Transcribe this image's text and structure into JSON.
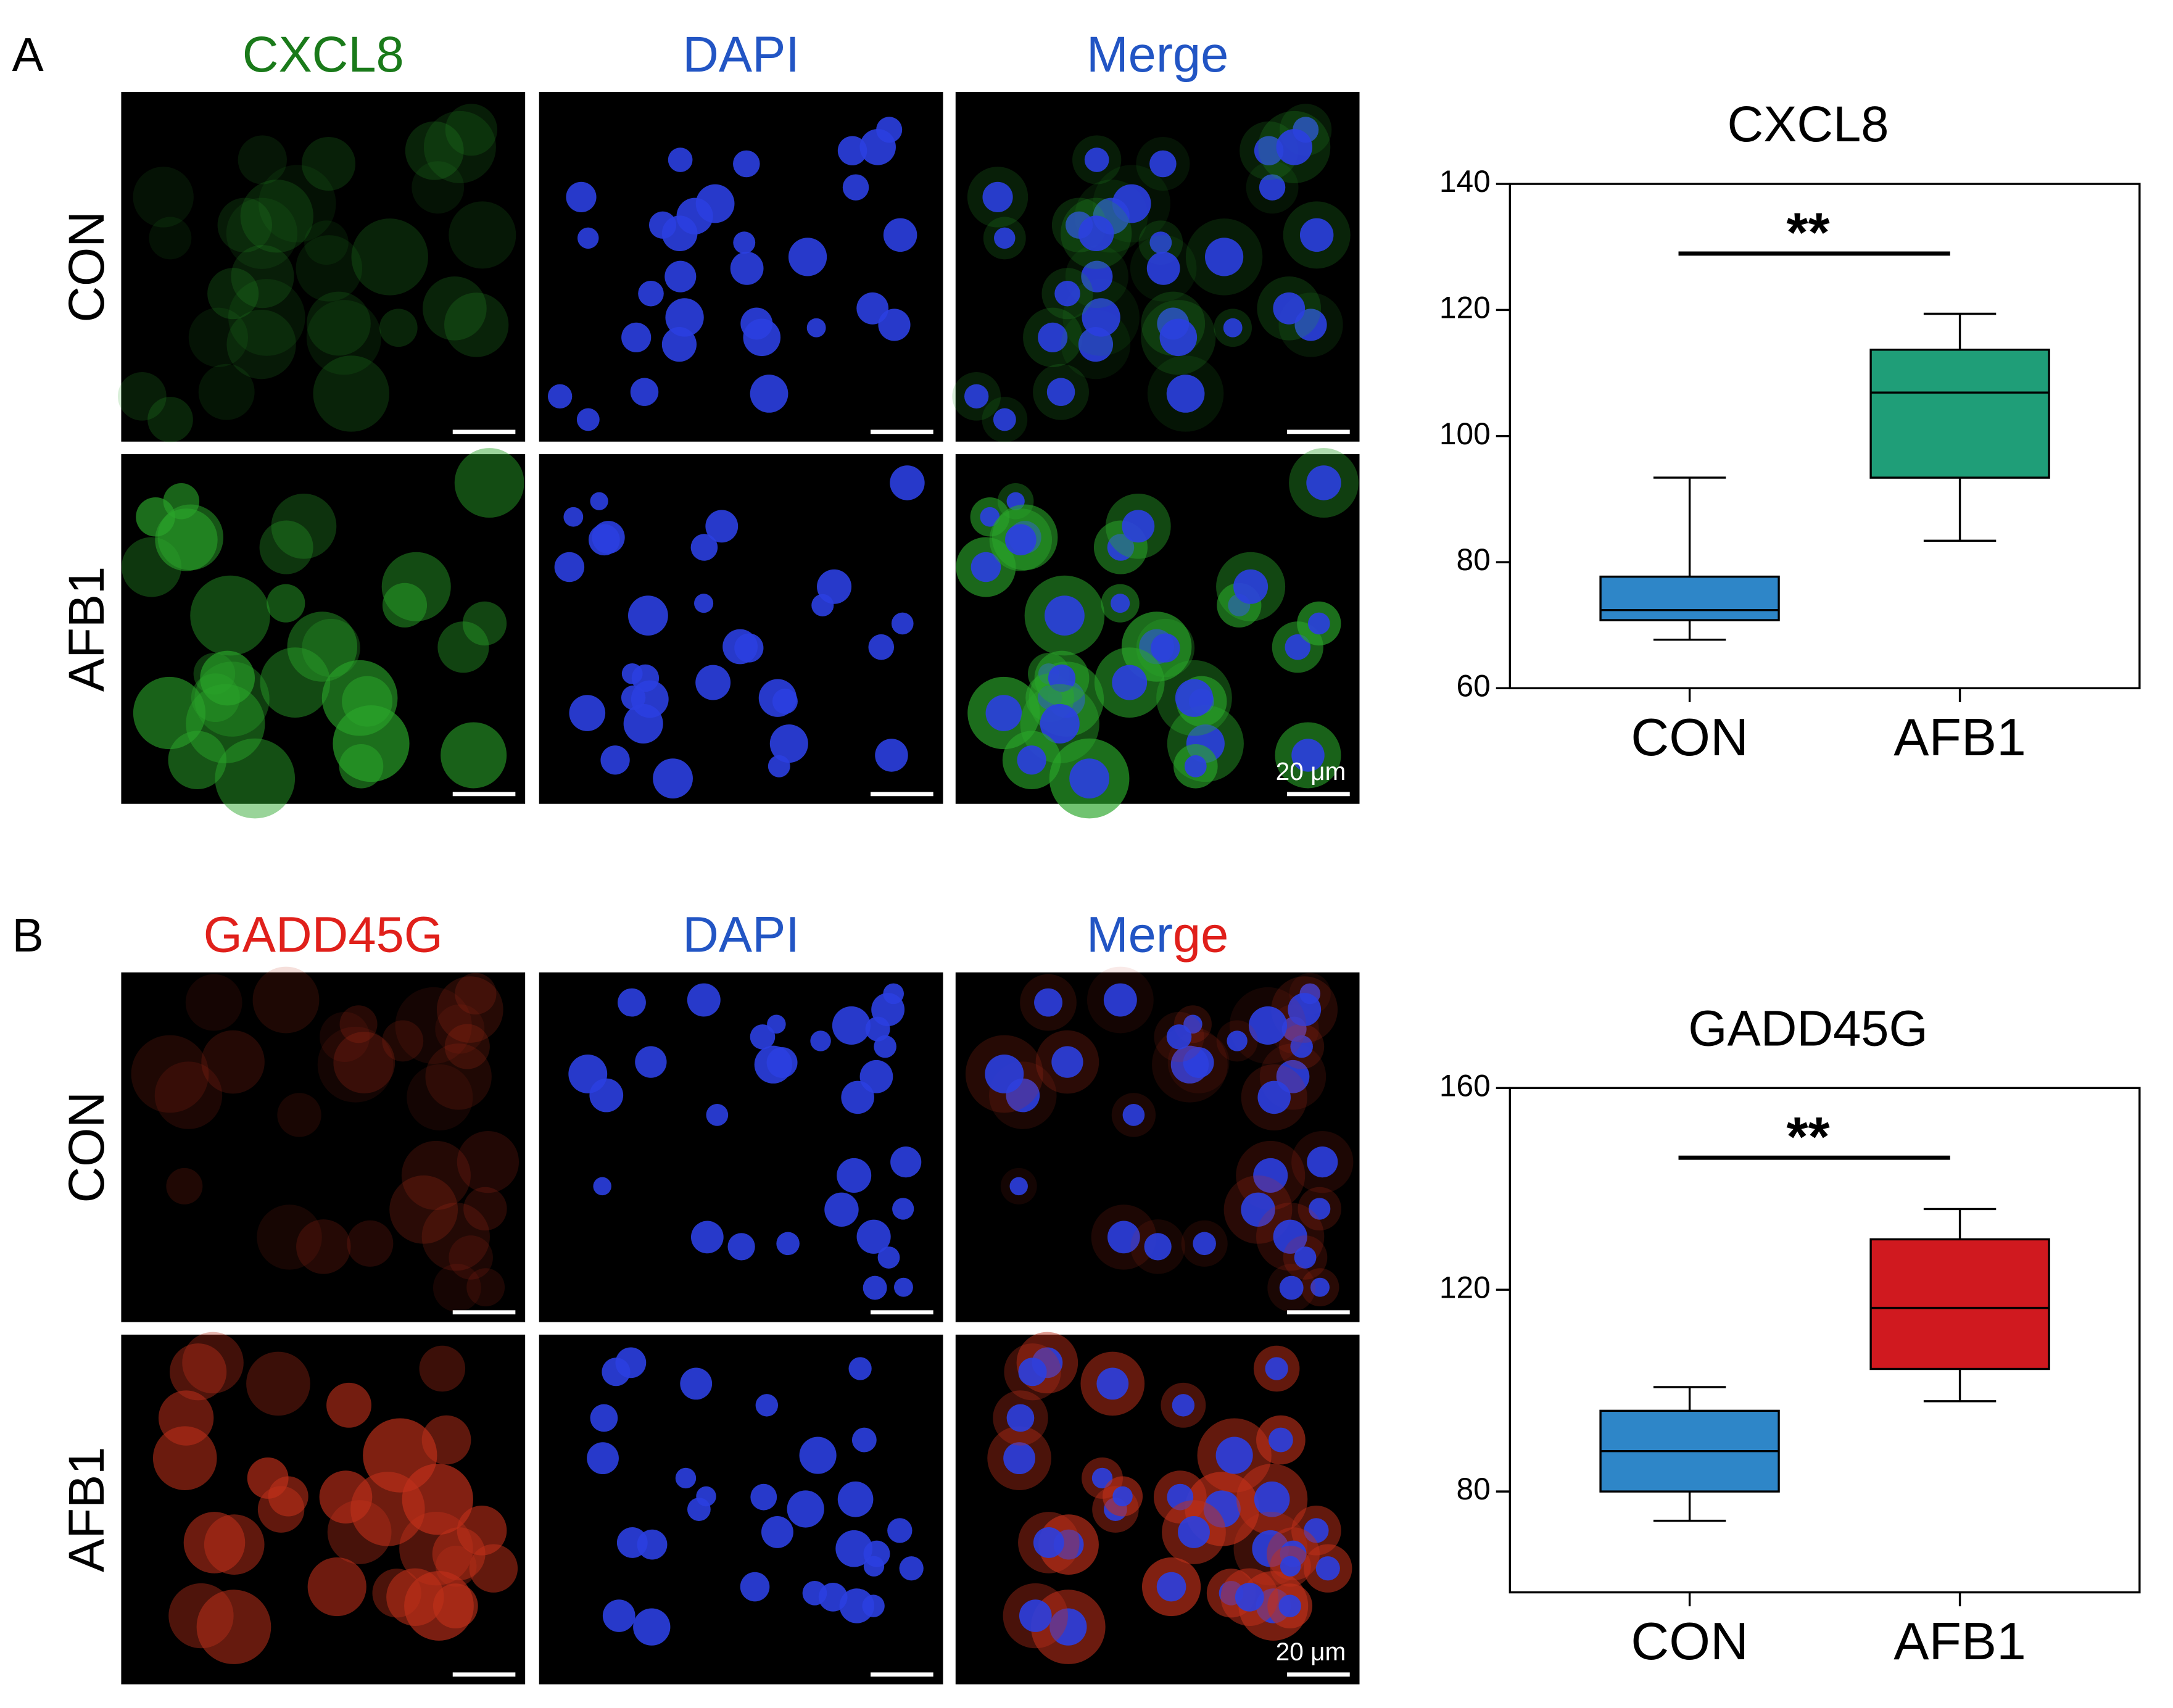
{
  "panels": [
    {
      "label": "A",
      "columns": [
        {
          "parts": [
            {
              "text": "CXCL8",
              "color": "#1a7a1a"
            }
          ]
        },
        {
          "parts": [
            {
              "text": "DAPI",
              "color": "#2255c4"
            }
          ]
        },
        {
          "parts": [
            {
              "text": "Merge",
              "color": "#2255c4"
            }
          ]
        }
      ],
      "rows": [
        "CON",
        "AFB1"
      ],
      "scale_bar": "20 μm"
    },
    {
      "label": "B",
      "columns": [
        {
          "parts": [
            {
              "text": "GADD45G",
              "color": "#e0201b"
            }
          ]
        },
        {
          "parts": [
            {
              "text": "DAPI",
              "color": "#2255c4"
            }
          ]
        },
        {
          "parts": [
            {
              "text": "Mer",
              "color": "#2255c4"
            },
            {
              "text": "ge",
              "color": "#e0201b"
            }
          ]
        }
      ],
      "rows": [
        "CON",
        "AFB1"
      ],
      "scale_bar": "20 μm"
    }
  ],
  "chart_data": [
    {
      "type": "box",
      "title": "CXCL8",
      "categories": [
        "CON",
        "AFB1"
      ],
      "boxes": [
        {
          "min": 67.7,
          "q1": 70.8,
          "median": 72.4,
          "q3": 77.7,
          "max": 93.4
        },
        {
          "min": 83.4,
          "q1": 93.4,
          "median": 106.9,
          "q3": 113.7,
          "max": 119.4
        }
      ],
      "colors": [
        "#2e86c8",
        "#1f9e78"
      ],
      "ylim": [
        60,
        140
      ],
      "yticks": [
        60,
        80,
        100,
        120,
        140
      ],
      "annotation": "**"
    },
    {
      "type": "box",
      "title": "GADD45G",
      "categories": [
        "CON",
        "AFB1"
      ],
      "boxes": [
        {
          "min": 74.2,
          "q1": 80,
          "median": 88,
          "q3": 96,
          "max": 100.7
        },
        {
          "min": 97.9,
          "q1": 104.3,
          "median": 116.4,
          "q3": 130,
          "max": 136
        }
      ],
      "colors": [
        "#2e86c8",
        "#d0191f"
      ],
      "ylim": [
        60,
        160
      ],
      "yticks": [
        80,
        120,
        160
      ],
      "annotation": "**"
    }
  ]
}
